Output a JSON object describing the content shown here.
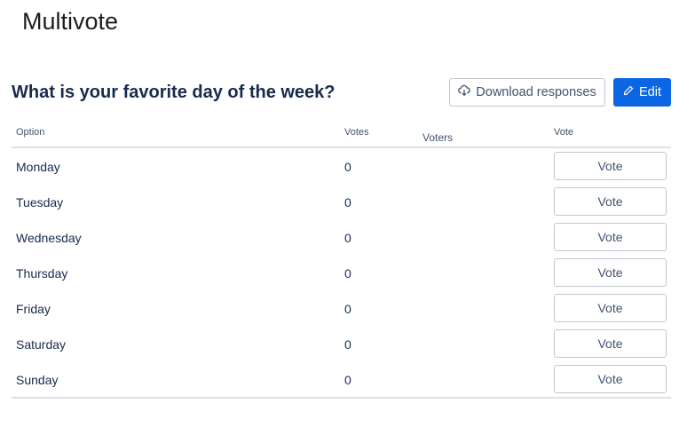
{
  "app_title": "Multivote",
  "question": "What is your favorite day of the week?",
  "toolbar": {
    "download_label": "Download responses",
    "download_icon": "cloud-download-icon",
    "edit_label": "Edit",
    "edit_icon": "pencil-icon",
    "accent": "#0c66e4"
  },
  "table": {
    "headers": {
      "option": "Option",
      "votes": "Votes",
      "voters": "Voters",
      "vote": "Vote"
    },
    "rows": [
      {
        "option": "Monday",
        "votes": "0",
        "voters": "",
        "action": "Vote"
      },
      {
        "option": "Tuesday",
        "votes": "0",
        "voters": "",
        "action": "Vote"
      },
      {
        "option": "Wednesday",
        "votes": "0",
        "voters": "",
        "action": "Vote"
      },
      {
        "option": "Thursday",
        "votes": "0",
        "voters": "",
        "action": "Vote"
      },
      {
        "option": "Friday",
        "votes": "0",
        "voters": "",
        "action": "Vote"
      },
      {
        "option": "Saturday",
        "votes": "0",
        "voters": "",
        "action": "Vote"
      },
      {
        "option": "Sunday",
        "votes": "0",
        "voters": "",
        "action": "Vote"
      }
    ]
  }
}
